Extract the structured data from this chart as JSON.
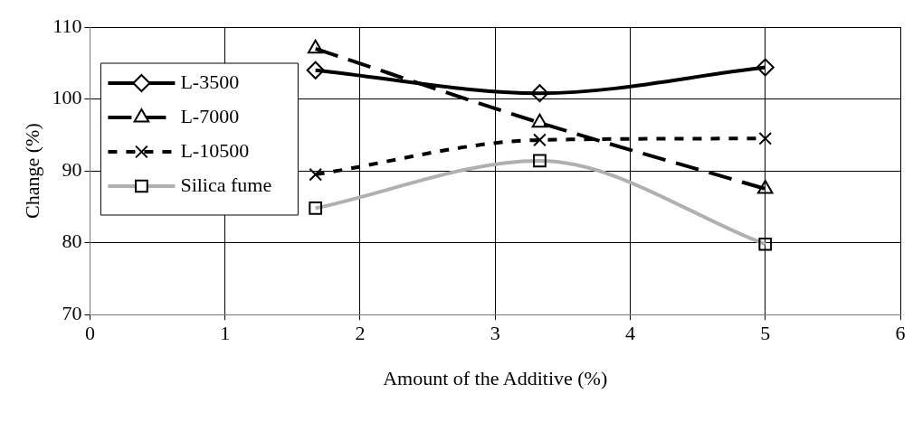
{
  "chart_data": {
    "type": "line",
    "xlabel": "Amount of the Additive (%)",
    "ylabel": "Change (%)",
    "x": [
      1.67,
      3.33,
      5
    ],
    "series": [
      {
        "name": "L-3500",
        "color": "#000000",
        "values": [
          104,
          100.8,
          104.4
        ],
        "marker": "diamond",
        "line_style": "solid"
      },
      {
        "name": "L-7000",
        "color": "#000000",
        "values": [
          107,
          96.7,
          87.5
        ],
        "marker": "triangle",
        "line_style": "dashed"
      },
      {
        "name": "L-10500",
        "color": "#000000",
        "values": [
          89.5,
          94.3,
          94.5
        ],
        "marker": "cross",
        "line_style": "dotted"
      },
      {
        "name": "Silica fume",
        "color": "#b0b0b0",
        "values": [
          84.8,
          91.4,
          79.8
        ],
        "marker": "square",
        "line_style": "solid"
      }
    ],
    "xlim": [
      0,
      6
    ],
    "xticks": [
      0,
      1,
      2,
      3,
      4,
      5,
      6
    ],
    "ylim": [
      70,
      110
    ],
    "yticks": [
      70,
      80,
      90,
      100,
      110
    ],
    "grid": true,
    "legend": "top left"
  }
}
